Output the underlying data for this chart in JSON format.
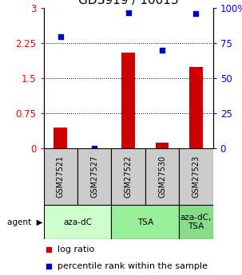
{
  "title": "GDS919 / 10013",
  "samples": [
    "GSM27521",
    "GSM27527",
    "GSM27522",
    "GSM27530",
    "GSM27523"
  ],
  "log_ratio": [
    0.45,
    0.0,
    2.05,
    0.12,
    1.75
  ],
  "percentile_rank": [
    80,
    0,
    97,
    70,
    96
  ],
  "left_yticks": [
    0,
    0.75,
    1.5,
    2.25,
    3
  ],
  "right_yticks": [
    0,
    25,
    50,
    75,
    100
  ],
  "ylim_left": [
    0,
    3
  ],
  "ylim_right": [
    0,
    100
  ],
  "bar_color": "#cc0000",
  "dot_color": "#0000cc",
  "bar_width": 0.4,
  "agent_groups": [
    {
      "label": "aza-dC",
      "span": [
        0,
        2
      ],
      "color": "#ccffcc"
    },
    {
      "label": "TSA",
      "span": [
        2,
        4
      ],
      "color": "#99ee99"
    },
    {
      "label": "aza-dC,\nTSA",
      "span": [
        4,
        5
      ],
      "color": "#88dd88"
    }
  ],
  "legend_bar_label": "log ratio",
  "legend_dot_label": "percentile rank within the sample",
  "sample_box_color": "#cccccc",
  "title_fontsize": 11,
  "tick_fontsize": 8.5,
  "legend_fontsize": 8
}
